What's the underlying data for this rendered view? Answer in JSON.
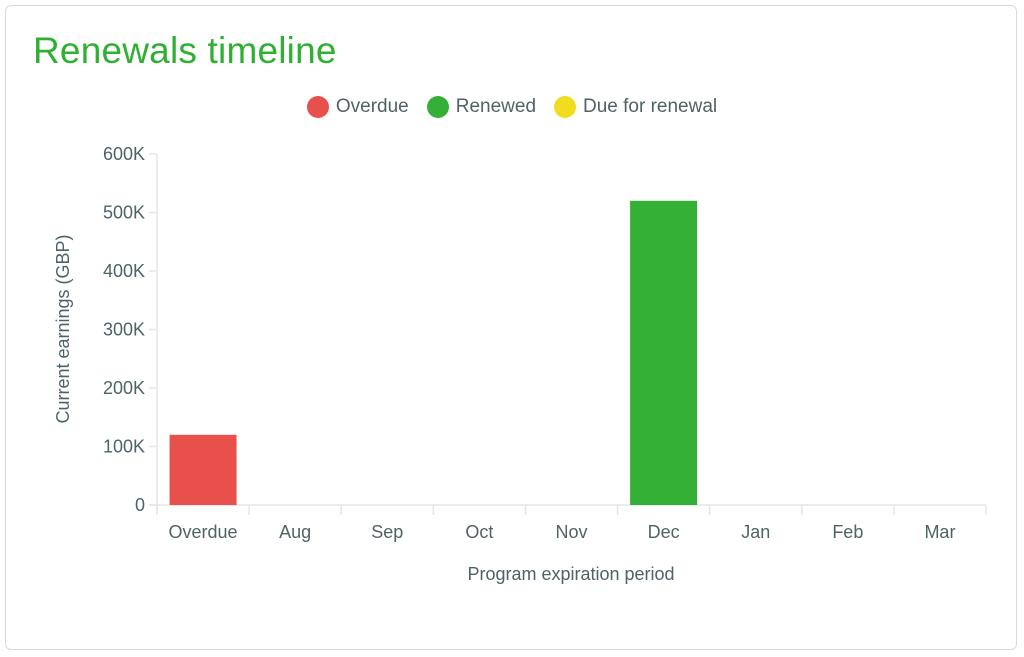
{
  "card": {
    "title": "Renewals timeline"
  },
  "legend": [
    {
      "label": "Overdue",
      "color": "#e8504b"
    },
    {
      "label": "Renewed",
      "color": "#33b035"
    },
    {
      "label": "Due for renewal",
      "color": "#f0dd1f"
    }
  ],
  "chart_data": {
    "type": "bar",
    "title": "Renewals timeline",
    "xlabel": "Program expiration period",
    "ylabel": "Current earnings (GBP)",
    "categories": [
      "Overdue",
      "Aug",
      "Sep",
      "Oct",
      "Nov",
      "Dec",
      "Jan",
      "Feb",
      "Mar"
    ],
    "series": [
      {
        "name": "Overdue",
        "color": "#e8504b",
        "values": [
          120000,
          0,
          0,
          0,
          0,
          0,
          0,
          0,
          0
        ]
      },
      {
        "name": "Renewed",
        "color": "#33b035",
        "values": [
          0,
          0,
          0,
          0,
          0,
          520000,
          0,
          0,
          0
        ]
      },
      {
        "name": "Due for renewal",
        "color": "#f0dd1f",
        "values": [
          0,
          0,
          0,
          0,
          0,
          0,
          0,
          0,
          0
        ]
      }
    ],
    "ylim": [
      0,
      600000
    ],
    "yticks": [
      0,
      100000,
      200000,
      300000,
      400000,
      500000,
      600000
    ],
    "ytick_labels": [
      "0",
      "100K",
      "200K",
      "300K",
      "400K",
      "500K",
      "600K"
    ],
    "grid": false,
    "legend_position": "top-center",
    "stacked": true
  }
}
